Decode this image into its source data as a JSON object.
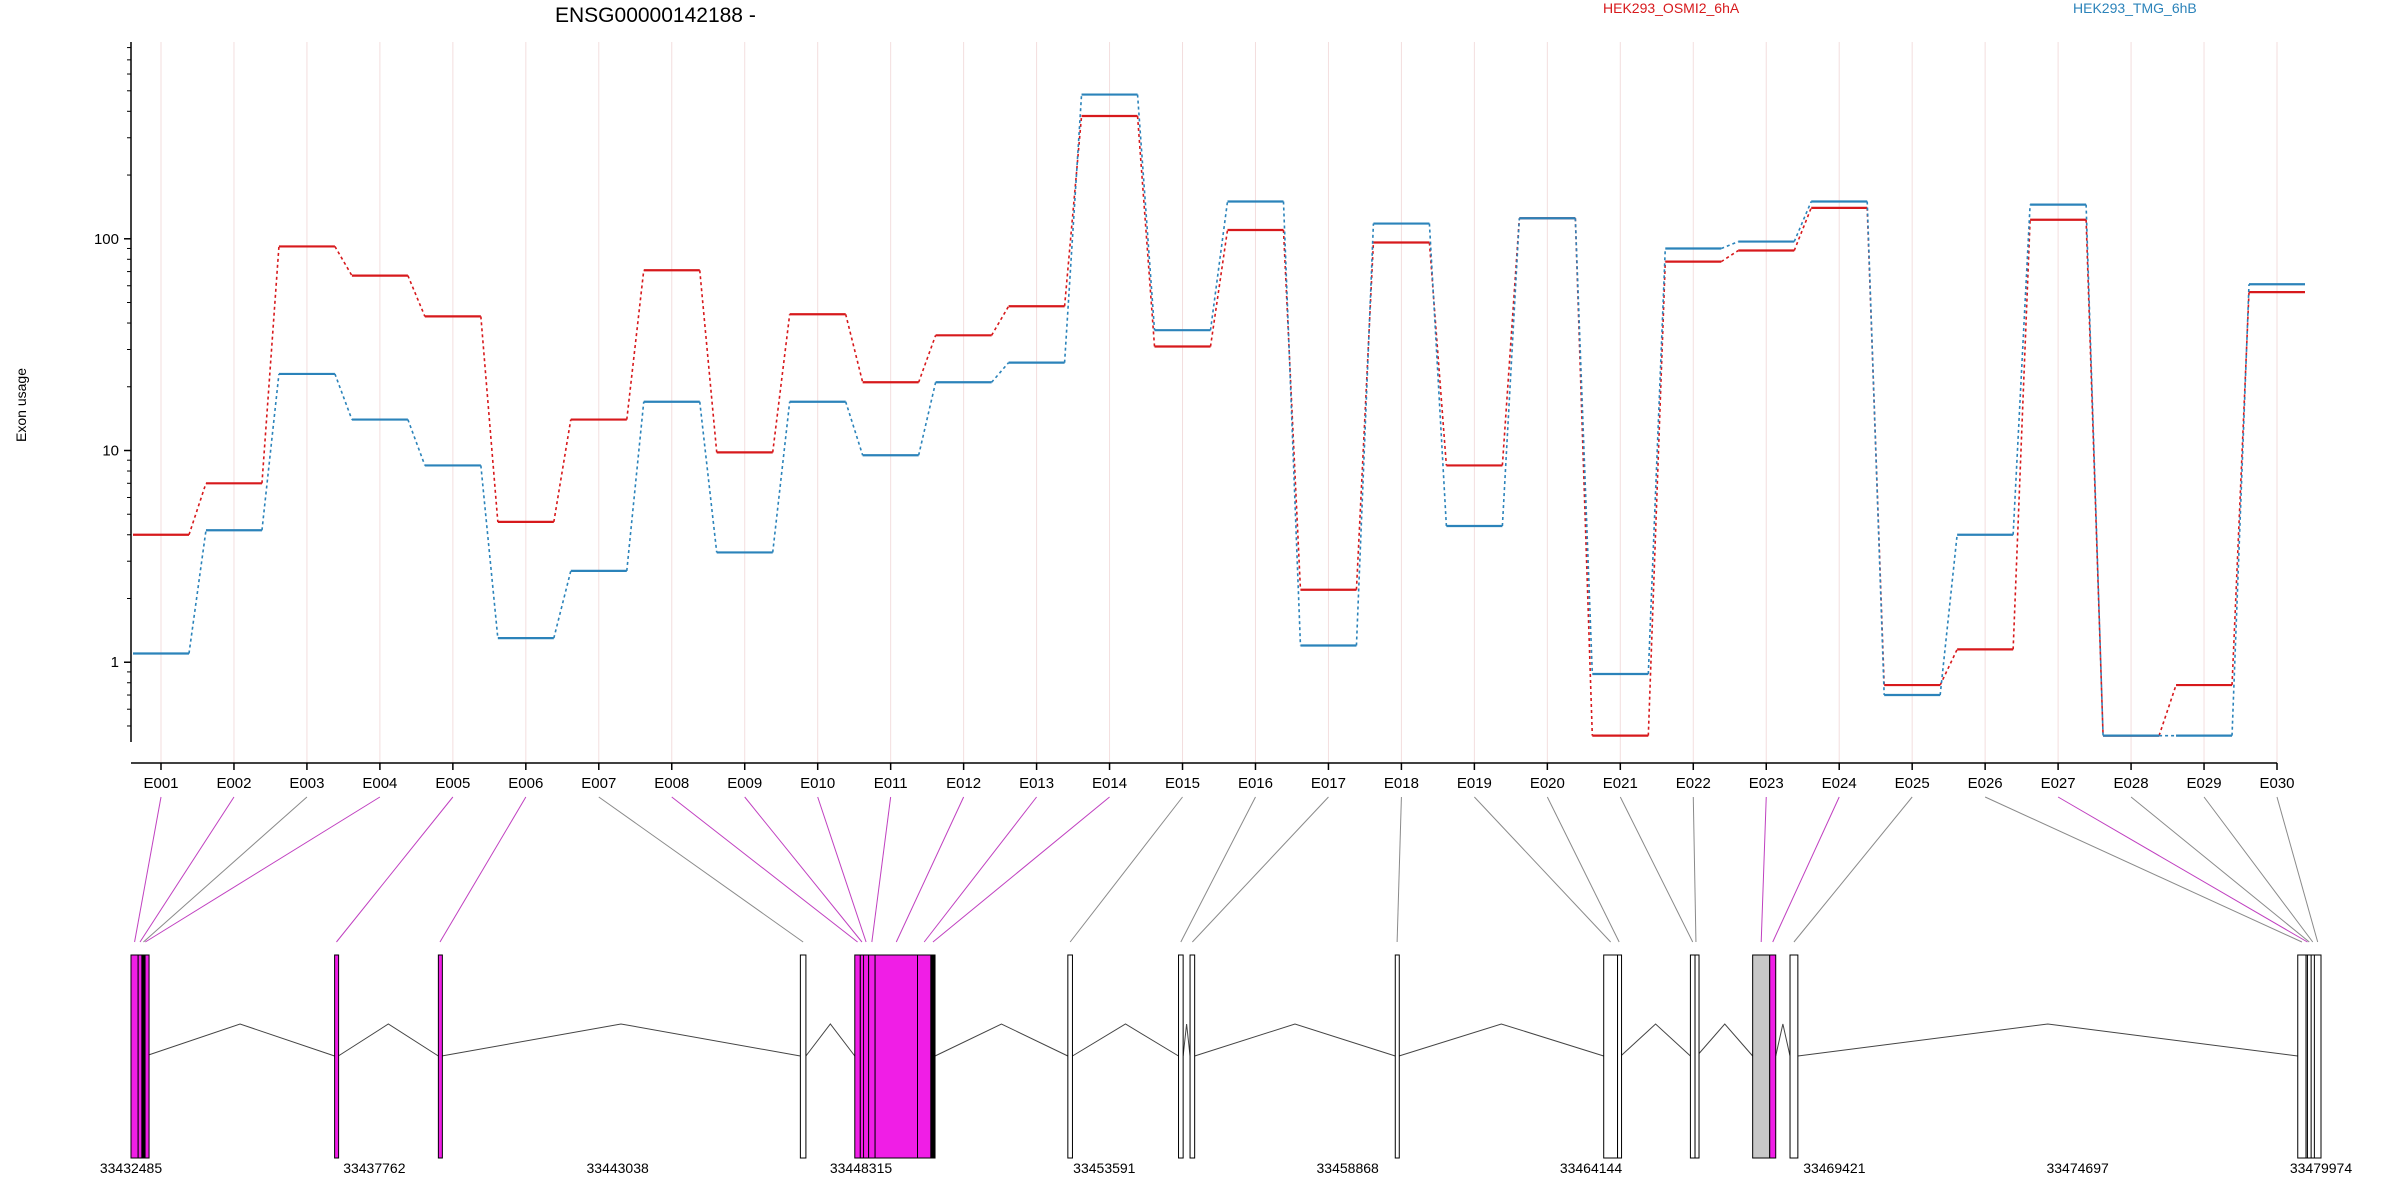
{
  "chart_data": {
    "type": "line",
    "title": "ENSG00000142188 -",
    "ylabel": "Exon usage",
    "y_scale": "log",
    "ylim": [
      0.42,
      850
    ],
    "yticks": [
      1,
      10,
      100
    ],
    "grid": "vertical per exon",
    "legend_placement": "top-right",
    "categories": [
      "E001",
      "E002",
      "E003",
      "E004",
      "E005",
      "E006",
      "E007",
      "E008",
      "E009",
      "E010",
      "E011",
      "E012",
      "E013",
      "E014",
      "E015",
      "E016",
      "E017",
      "E018",
      "E019",
      "E020",
      "E021",
      "E022",
      "E023",
      "E024",
      "E025",
      "E026",
      "E027",
      "E028",
      "E029",
      "E030"
    ],
    "series": [
      {
        "name": "HEK293_OSMI2_6hA",
        "color": "#d7191c",
        "values": [
          4.0,
          7.0,
          92,
          67,
          43,
          4.6,
          14,
          71,
          9.8,
          44,
          21,
          35,
          48,
          380,
          31,
          110,
          2.2,
          96,
          8.5,
          125,
          0.45,
          78,
          88,
          140,
          0.78,
          1.15,
          123,
          0.45,
          0.78,
          56
        ]
      },
      {
        "name": "HEK293_TMG_6hB",
        "color": "#2b83ba",
        "values": [
          1.1,
          4.2,
          23,
          14,
          8.5,
          1.3,
          2.7,
          17,
          3.3,
          17,
          9.5,
          21,
          26,
          480,
          37,
          150,
          1.2,
          118,
          4.4,
          125,
          0.88,
          90,
          97,
          150,
          0.7,
          4.0,
          145,
          0.45,
          0.45,
          61
        ]
      }
    ],
    "gene_model": {
      "coord_ticks": [
        "33432485",
        "33437762",
        "33443038",
        "33448315",
        "33453591",
        "33458868",
        "33464144",
        "33469421",
        "33474697",
        "33479974"
      ],
      "exon_ranges": [
        [
          33432485,
          33432640
        ],
        [
          33432640,
          33432720
        ],
        [
          33432720,
          33432790
        ],
        [
          33432790,
          33432800
        ],
        [
          33436900,
          33436980
        ],
        [
          33439150,
          33439220
        ],
        [
          33447000,
          33447120
        ],
        [
          33448180,
          33448300
        ],
        [
          33448300,
          33448370
        ],
        [
          33448370,
          33448480
        ],
        [
          33448480,
          33448620
        ],
        [
          33448620,
          33449540
        ],
        [
          33449540,
          33449830
        ],
        [
          33449830,
          33449920
        ],
        [
          33452800,
          33452900
        ],
        [
          33455200,
          33455300
        ],
        [
          33455450,
          33455550
        ],
        [
          33459900,
          33459980
        ],
        [
          33464420,
          33464720
        ],
        [
          33464720,
          33464790
        ],
        [
          33466300,
          33466400
        ],
        [
          33466400,
          33466440
        ],
        [
          33467650,
          33468020
        ],
        [
          33468020,
          33468150
        ],
        [
          33468460,
          33468630
        ],
        [
          33479470,
          33479650
        ],
        [
          33479650,
          33479710
        ],
        [
          33479680,
          33479760
        ],
        [
          33479760,
          33479830
        ],
        [
          33479830,
          33479974
        ]
      ],
      "exon_fill": [
        "magenta",
        "magenta",
        "black",
        "magenta",
        "magenta",
        "magenta",
        "white",
        "magenta",
        "magenta",
        "magenta",
        "magenta",
        "magenta",
        "magenta",
        "black",
        "white",
        "white",
        "white",
        "white",
        "white",
        "white",
        "white",
        "white",
        "grey",
        "magenta",
        "white",
        "white",
        "white",
        "white",
        "white",
        "white"
      ],
      "exon_highlight": [
        true,
        true,
        false,
        true,
        true,
        true,
        false,
        true,
        true,
        true,
        true,
        true,
        true,
        true,
        false,
        false,
        false,
        false,
        false,
        false,
        false,
        false,
        true,
        true,
        false,
        false,
        true,
        false,
        false,
        false
      ]
    }
  }
}
